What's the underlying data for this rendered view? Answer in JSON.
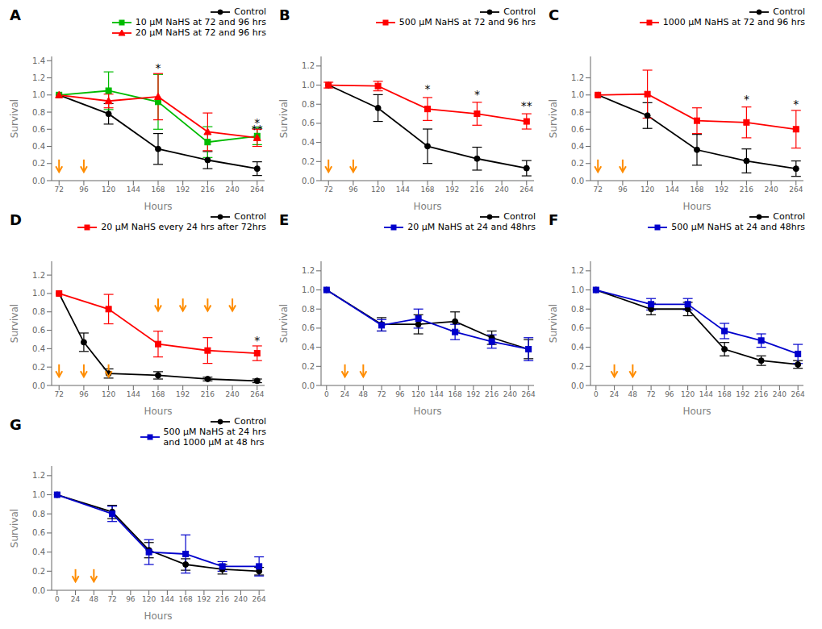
{
  "chart_data": [
    {
      "type": "line",
      "title": "A",
      "x_label": "Hours",
      "y_label": "Survival",
      "legend": "upper right",
      "grid": false,
      "xlim": [
        64.8,
        271.2
      ],
      "xticks": [
        72,
        96,
        120,
        144,
        168,
        192,
        216,
        240,
        264
      ],
      "ylim": [
        0,
        1.45
      ],
      "yticks": [
        {
          "value": 0,
          "label": "0.0"
        },
        0.2,
        0.4,
        0.6,
        0.8,
        {
          "value": 1,
          "label": "1.0"
        },
        1.2,
        1.4
      ],
      "series": [
        {
          "name": "Control",
          "color": "#000000",
          "marker": "circle",
          "x": [
            72,
            120,
            168,
            216,
            264
          ],
          "values": [
            1.0,
            0.78,
            0.37,
            0.24,
            0.14
          ],
          "errors": [
            0.0,
            0.12,
            0.18,
            0.1,
            0.08
          ]
        },
        {
          "name": "10 μM NaHS at 72 and 96 hrs",
          "color": "#00bb00",
          "marker": "square",
          "x": [
            72,
            120,
            168,
            216,
            264
          ],
          "values": [
            1.0,
            1.05,
            0.92,
            0.45,
            0.52
          ],
          "errors": [
            0.0,
            0.22,
            0.32,
            0.18,
            0.1
          ]
        },
        {
          "name": "20 μM NaHS at 72 and 96 hrs",
          "color": "#ff0000",
          "marker": "triangle",
          "x": [
            72,
            120,
            168,
            216,
            264
          ],
          "values": [
            1.0,
            0.93,
            0.98,
            0.57,
            0.5
          ],
          "errors": [
            0.0,
            0.08,
            0.27,
            0.22,
            0.1
          ]
        }
      ],
      "arrows": {
        "color": "#FF8C00",
        "low": [
          72,
          96
        ],
        "high": []
      },
      "annotations": [
        {
          "x": 168,
          "y": 1.27,
          "text": "*"
        },
        {
          "x": 264,
          "y": 0.63,
          "text": "*"
        },
        {
          "x": 264,
          "y": 0.555,
          "text": "**"
        }
      ]
    },
    {
      "type": "line",
      "title": "B",
      "x_label": "Hours",
      "y_label": "Survival",
      "legend": "upper right",
      "grid": false,
      "xlim": [
        64.8,
        271.2
      ],
      "xticks": [
        72,
        96,
        120,
        144,
        168,
        192,
        216,
        240,
        264
      ],
      "ylim": [
        0,
        1.3
      ],
      "yticks": [
        {
          "value": 0,
          "label": "0.0"
        },
        0.2,
        0.4,
        0.6,
        0.8,
        {
          "value": 1,
          "label": "1.0"
        },
        1.2
      ],
      "series": [
        {
          "name": "Control",
          "color": "#000000",
          "marker": "circle",
          "x": [
            72,
            120,
            168,
            216,
            264
          ],
          "values": [
            1.0,
            0.76,
            0.36,
            0.23,
            0.13
          ],
          "errors": [
            0.0,
            0.14,
            0.18,
            0.12,
            0.08
          ]
        },
        {
          "name": "500 μM NaHS at 72 and 96 hrs",
          "color": "#ff0000",
          "marker": "square",
          "x": [
            72,
            120,
            168,
            216,
            264
          ],
          "values": [
            1.0,
            0.99,
            0.75,
            0.7,
            0.62
          ],
          "errors": [
            0.03,
            0.05,
            0.12,
            0.12,
            0.08
          ]
        }
      ],
      "arrows": {
        "color": "#FF8C00",
        "low": [
          72,
          96
        ],
        "high": []
      },
      "annotations": [
        {
          "x": 168,
          "y": 0.92,
          "text": "*"
        },
        {
          "x": 216,
          "y": 0.86,
          "text": "*"
        },
        {
          "x": 264,
          "y": 0.74,
          "text": "**"
        }
      ]
    },
    {
      "type": "line",
      "title": "C",
      "x_label": "Hours",
      "y_label": "Survival",
      "legend": "upper right",
      "grid": false,
      "xlim": [
        64.8,
        271.2
      ],
      "xticks": [
        72,
        96,
        120,
        144,
        168,
        192,
        216,
        240,
        264
      ],
      "ylim": [
        0,
        1.45
      ],
      "yticks": [
        {
          "value": 0,
          "label": "0.0"
        },
        0.2,
        0.4,
        0.6,
        0.8,
        {
          "value": 1,
          "label": "1.0"
        },
        1.2
      ],
      "series": [
        {
          "name": "Control",
          "color": "#000000",
          "marker": "circle",
          "x": [
            72,
            120,
            168,
            216,
            264
          ],
          "values": [
            1.0,
            0.76,
            0.36,
            0.23,
            0.14
          ],
          "errors": [
            0.0,
            0.15,
            0.18,
            0.14,
            0.09
          ]
        },
        {
          "name": "1000 μM NaHS at 72 and 96 hrs",
          "color": "#ff0000",
          "marker": "square",
          "x": [
            72,
            120,
            168,
            216,
            264
          ],
          "values": [
            1.0,
            1.01,
            0.7,
            0.68,
            0.6
          ],
          "errors": [
            0.0,
            0.28,
            0.15,
            0.18,
            0.22
          ]
        }
      ],
      "arrows": {
        "color": "#FF8C00",
        "low": [
          72,
          96
        ],
        "high": []
      },
      "annotations": [
        {
          "x": 216,
          "y": 0.9,
          "text": "*"
        },
        {
          "x": 264,
          "y": 0.85,
          "text": "*"
        }
      ]
    },
    {
      "type": "line",
      "title": "D",
      "x_label": "Hours",
      "y_label": "Survival",
      "legend": "upper right",
      "grid": false,
      "xlim": [
        64.8,
        271.2
      ],
      "xticks": [
        72,
        96,
        120,
        144,
        168,
        192,
        216,
        240,
        264
      ],
      "ylim": [
        0,
        1.35
      ],
      "yticks": [
        {
          "value": 0,
          "label": "0.0"
        },
        0.2,
        0.4,
        0.6,
        0.8,
        {
          "value": 1,
          "label": "1.0"
        },
        1.2
      ],
      "series": [
        {
          "name": "Control",
          "color": "#000000",
          "marker": "circle",
          "x": [
            72,
            96,
            120,
            168,
            216,
            264
          ],
          "values": [
            1.0,
            0.47,
            0.13,
            0.11,
            0.07,
            0.05
          ],
          "errors": [
            0.0,
            0.1,
            0.05,
            0.04,
            0.02,
            0.02
          ]
        },
        {
          "name": "20 μM NaHS every 24 hrs after 72hrs",
          "color": "#ff0000",
          "marker": "square",
          "x": [
            72,
            120,
            168,
            216,
            264
          ],
          "values": [
            1.0,
            0.83,
            0.45,
            0.38,
            0.35
          ],
          "errors": [
            0.0,
            0.16,
            0.14,
            0.14,
            0.08
          ]
        }
      ],
      "arrows": {
        "color": "#FF8C00",
        "low": [
          72,
          96,
          120
        ],
        "high": [
          168,
          192,
          216,
          240
        ]
      },
      "annotations": [
        {
          "x": 264,
          "y": 0.45,
          "text": "*"
        }
      ]
    },
    {
      "type": "line",
      "title": "E",
      "x_label": "Hours",
      "y_label": "Survival",
      "legend": "upper right",
      "grid": false,
      "xlim": [
        -7.2,
        271.2
      ],
      "xticks": [
        0,
        24,
        48,
        72,
        96,
        120,
        144,
        168,
        192,
        216,
        240,
        264
      ],
      "ylim": [
        0,
        1.3
      ],
      "yticks": [
        {
          "value": 0,
          "label": "0.0"
        },
        0.2,
        0.4,
        0.6,
        0.8,
        {
          "value": 1,
          "label": "1.0"
        },
        1.2
      ],
      "series": [
        {
          "name": "Control",
          "color": "#000000",
          "marker": "circle",
          "x": [
            0,
            72,
            120,
            168,
            216,
            264
          ],
          "values": [
            1.0,
            0.64,
            0.64,
            0.67,
            0.5,
            0.38
          ],
          "errors": [
            0.0,
            0.07,
            0.1,
            0.1,
            0.07,
            0.1
          ]
        },
        {
          "name": "20 μM NaHS at 24 and 48hrs",
          "color": "#0000cc",
          "marker": "square",
          "x": [
            0,
            72,
            120,
            168,
            216,
            264
          ],
          "values": [
            1.0,
            0.63,
            0.7,
            0.56,
            0.46,
            0.38
          ],
          "errors": [
            0.0,
            0.06,
            0.1,
            0.08,
            0.07,
            0.12
          ]
        }
      ],
      "arrows": {
        "color": "#FF8C00",
        "low": [
          24,
          48
        ],
        "high": []
      },
      "annotations": []
    },
    {
      "type": "line",
      "title": "F",
      "x_label": "Hours",
      "y_label": "Survival",
      "legend": "upper right",
      "grid": false,
      "xlim": [
        -7.2,
        271.2
      ],
      "xticks": [
        0,
        24,
        48,
        72,
        96,
        120,
        144,
        168,
        192,
        216,
        240,
        264
      ],
      "ylim": [
        0,
        1.3
      ],
      "yticks": [
        {
          "value": 0,
          "label": "0.0"
        },
        0.2,
        0.4,
        0.6,
        0.8,
        {
          "value": 1,
          "label": "1.0"
        },
        1.2
      ],
      "series": [
        {
          "name": "Control",
          "color": "#000000",
          "marker": "circle",
          "x": [
            0,
            72,
            120,
            168,
            216,
            264
          ],
          "values": [
            1.0,
            0.8,
            0.8,
            0.38,
            0.26,
            0.22
          ],
          "errors": [
            0.0,
            0.06,
            0.07,
            0.07,
            0.05,
            0.04
          ]
        },
        {
          "name": "500 μM NaHS at 24 and 48hrs",
          "color": "#0000cc",
          "marker": "square",
          "x": [
            0,
            72,
            120,
            168,
            216,
            264
          ],
          "values": [
            1.0,
            0.85,
            0.85,
            0.57,
            0.47,
            0.33
          ],
          "errors": [
            0.0,
            0.06,
            0.06,
            0.08,
            0.07,
            0.1
          ]
        }
      ],
      "arrows": {
        "color": "#FF8C00",
        "low": [
          24,
          48
        ],
        "high": []
      },
      "annotations": []
    },
    {
      "type": "line",
      "title": "G",
      "x_label": "Hours",
      "y_label": "Survival",
      "legend": "upper right",
      "grid": false,
      "xlim": [
        -7.2,
        271.2
      ],
      "xticks": [
        0,
        24,
        48,
        72,
        96,
        120,
        144,
        168,
        192,
        216,
        240,
        264
      ],
      "ylim": [
        0,
        1.3
      ],
      "yticks": [
        {
          "value": 0,
          "label": "0.0"
        },
        0.2,
        0.4,
        0.6,
        0.8,
        {
          "value": 1,
          "label": "1.0"
        },
        1.2
      ],
      "series": [
        {
          "name": "Control",
          "color": "#000000",
          "marker": "circle",
          "x": [
            0,
            72,
            120,
            168,
            216,
            264
          ],
          "values": [
            1.0,
            0.82,
            0.42,
            0.27,
            0.22,
            0.2
          ],
          "errors": [
            0.0,
            0.07,
            0.08,
            0.06,
            0.05,
            0.04
          ]
        },
        {
          "name": "500 μM NaHS at 24 hrs\nand 1000 μM at 48 hrs",
          "color": "#0000cc",
          "marker": "square",
          "x": [
            0,
            72,
            120,
            168,
            216,
            264
          ],
          "values": [
            1.0,
            0.8,
            0.4,
            0.38,
            0.25,
            0.25
          ],
          "errors": [
            0.0,
            0.08,
            0.13,
            0.2,
            0.05,
            0.1
          ]
        }
      ],
      "arrows": {
        "color": "#FF8C00",
        "low": [
          24,
          48
        ],
        "high": []
      },
      "annotations": []
    }
  ]
}
